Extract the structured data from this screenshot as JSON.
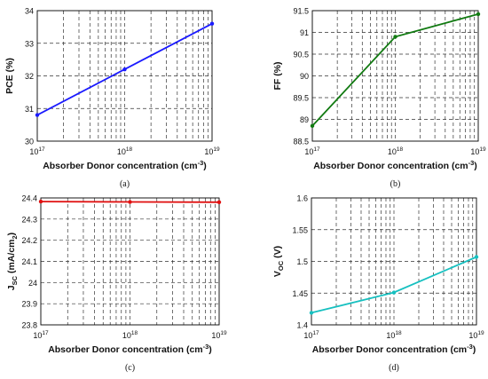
{
  "chart_data": [
    {
      "panel_label": "(a)",
      "type": "line",
      "x_scale": "log",
      "x": [
        1e+17,
        1e+18,
        1e+19
      ],
      "series": [
        {
          "values": [
            30.8,
            32.2,
            33.6
          ],
          "color": "#1a1aff",
          "markers": true
        }
      ],
      "xlabel_parts": [
        "Absorber Donor concentration (cm",
        "-3",
        ")"
      ],
      "ylabel_parts": [
        "PCE (%)"
      ],
      "xlim": [
        1e+17,
        1e+19
      ],
      "ylim": [
        30,
        34
      ],
      "yticks": [
        30,
        31,
        32,
        33,
        34
      ],
      "ytick_labels": [
        "30",
        "31",
        "32",
        "33",
        "34"
      ],
      "xticks": [
        {
          "base": "10",
          "exp": "17"
        },
        {
          "base": "10",
          "exp": "18"
        },
        {
          "base": "10",
          "exp": "19"
        }
      ],
      "grid": true
    },
    {
      "panel_label": "(b)",
      "type": "line",
      "x_scale": "log",
      "x": [
        1e+17,
        1e+18,
        1e+19
      ],
      "series": [
        {
          "values": [
            88.85,
            90.9,
            91.42
          ],
          "color": "#117a11",
          "markers": true
        }
      ],
      "xlabel_parts": [
        "Absorber Donor concentration (cm",
        "-3",
        ")"
      ],
      "ylabel_parts": [
        "FF (%)"
      ],
      "xlim": [
        1e+17,
        1e+19
      ],
      "ylim": [
        88.5,
        91.5
      ],
      "yticks": [
        88.5,
        89,
        89.5,
        90,
        90.5,
        91,
        91.5
      ],
      "ytick_labels": [
        "88.5",
        "89",
        "89.5",
        "90",
        "90.5",
        "91",
        "91.5"
      ],
      "xticks": [
        {
          "base": "10",
          "exp": "17"
        },
        {
          "base": "10",
          "exp": "18"
        },
        {
          "base": "10",
          "exp": "19"
        }
      ],
      "grid": true
    },
    {
      "panel_label": "(c)",
      "type": "line",
      "x_scale": "log",
      "x": [
        1e+17,
        1e+18,
        1e+19
      ],
      "series": [
        {
          "values": [
            24.383,
            24.381,
            24.38
          ],
          "color": "#e01010",
          "markers": true
        }
      ],
      "xlabel_parts": [
        "Absorber Donor concentration (cm",
        "-3",
        ")"
      ],
      "ylabel_parts": [
        "J",
        "SC",
        " (mA/cm",
        "2",
        ")"
      ],
      "xlim": [
        1e+17,
        1e+19
      ],
      "ylim": [
        23.8,
        24.4
      ],
      "yticks": [
        23.8,
        23.9,
        24.0,
        24.1,
        24.2,
        24.3,
        24.4
      ],
      "ytick_labels": [
        "23.8",
        "23.9",
        "24",
        "24.1",
        "24.2",
        "24.3",
        "24.4"
      ],
      "xticks": [
        {
          "base": "10",
          "exp": "17"
        },
        {
          "base": "10",
          "exp": "18"
        },
        {
          "base": "10",
          "exp": "19"
        }
      ],
      "grid": true
    },
    {
      "panel_label": "(d)",
      "type": "line",
      "x_scale": "log",
      "x": [
        1e+17,
        1e+18,
        1e+19
      ],
      "series": [
        {
          "values": [
            1.419,
            1.451,
            1.507
          ],
          "color": "#17c0c0",
          "markers": true
        }
      ],
      "xlabel_parts": [
        "Absorber Donor concentration (cm",
        "-3",
        ")"
      ],
      "ylabel_parts": [
        "V",
        "OC",
        " (V)"
      ],
      "xlim": [
        1e+17,
        1e+19
      ],
      "ylim": [
        1.4,
        1.6
      ],
      "yticks": [
        1.4,
        1.45,
        1.5,
        1.55,
        1.6
      ],
      "ytick_labels": [
        "1.4",
        "1.45",
        "1.5",
        "1.55",
        "1.6"
      ],
      "xticks": [
        {
          "base": "10",
          "exp": "17"
        },
        {
          "base": "10",
          "exp": "18"
        },
        {
          "base": "10",
          "exp": "19"
        }
      ],
      "grid": true
    }
  ]
}
